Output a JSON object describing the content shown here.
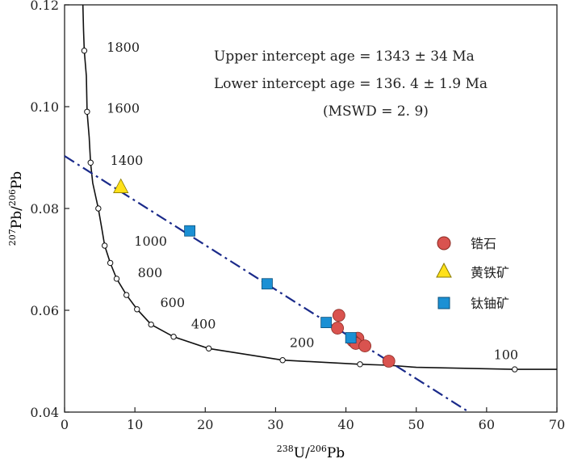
{
  "chart_data": {
    "type": "scatter",
    "xlabel": {
      "sup1": "238",
      "t1": "U/",
      "sup2": "206",
      "t2": "Pb"
    },
    "ylabel": {
      "sup1": "207",
      "t1": "Pb",
      "sep": "/",
      "sup2": "206",
      "t2": "Pb"
    },
    "xlim": [
      0,
      70
    ],
    "ylim": [
      0.04,
      0.12
    ],
    "xticks": [
      0,
      10,
      20,
      30,
      40,
      50,
      60,
      70
    ],
    "yticks": [
      0.04,
      0.06,
      0.08,
      0.1,
      0.12
    ],
    "ytick_labels": [
      "0.04",
      "0.06",
      "0.08",
      "0.10",
      "0.12"
    ],
    "annotations": {
      "upper": "Upper intercept  age = 1343 ± 34 Ma",
      "lower": "Lower intercept  age = 136. 4 ± 1.9 Ma",
      "mswd": "(MSWD = 2. 9)"
    },
    "concordia": {
      "points": [
        {
          "x": 2.6,
          "y": 0.12
        },
        {
          "x": 2.7,
          "y": 0.115
        },
        {
          "x": 2.8,
          "y": 0.111
        },
        {
          "x": 3.1,
          "y": 0.106
        },
        {
          "x": 3.2,
          "y": 0.099
        },
        {
          "x": 3.5,
          "y": 0.094
        },
        {
          "x": 3.7,
          "y": 0.089
        },
        {
          "x": 4.0,
          "y": 0.085
        },
        {
          "x": 4.8,
          "y": 0.08
        },
        {
          "x": 5.3,
          "y": 0.076
        },
        {
          "x": 5.7,
          "y": 0.0727
        },
        {
          "x": 6.5,
          "y": 0.0693
        },
        {
          "x": 7.4,
          "y": 0.0662
        },
        {
          "x": 8.8,
          "y": 0.063
        },
        {
          "x": 10.3,
          "y": 0.0602
        },
        {
          "x": 12.3,
          "y": 0.0572
        },
        {
          "x": 15.5,
          "y": 0.0548
        },
        {
          "x": 20.5,
          "y": 0.0525
        },
        {
          "x": 31.0,
          "y": 0.0502
        },
        {
          "x": 42.0,
          "y": 0.0494
        },
        {
          "x": 46.0,
          "y": 0.0492
        },
        {
          "x": 50.0,
          "y": 0.0488
        },
        {
          "x": 64.0,
          "y": 0.0484
        },
        {
          "x": 70.0,
          "y": 0.0484
        }
      ],
      "markers": [
        {
          "x": 2.8,
          "y": 0.111
        },
        {
          "x": 3.2,
          "y": 0.099
        },
        {
          "x": 3.7,
          "y": 0.089
        },
        {
          "x": 4.8,
          "y": 0.08
        },
        {
          "x": 5.7,
          "y": 0.0727
        },
        {
          "x": 6.5,
          "y": 0.0693
        },
        {
          "x": 7.4,
          "y": 0.0662
        },
        {
          "x": 8.8,
          "y": 0.063
        },
        {
          "x": 10.3,
          "y": 0.0602
        },
        {
          "x": 12.3,
          "y": 0.0572
        },
        {
          "x": 15.5,
          "y": 0.0548
        },
        {
          "x": 20.5,
          "y": 0.0525
        },
        {
          "x": 31.0,
          "y": 0.0502
        },
        {
          "x": 42.0,
          "y": 0.0494
        },
        {
          "x": 64.0,
          "y": 0.0484
        }
      ],
      "age_labels": [
        {
          "text": "1800",
          "x": 6.0,
          "y": 0.1108
        },
        {
          "text": "1600",
          "x": 6.0,
          "y": 0.0988
        },
        {
          "text": "1400",
          "x": 6.5,
          "y": 0.0886
        },
        {
          "text": "1000",
          "x": 9.9,
          "y": 0.0727
        },
        {
          "text": "800",
          "x": 10.4,
          "y": 0.0665
        },
        {
          "text": "600",
          "x": 13.6,
          "y": 0.0606
        },
        {
          "text": "400",
          "x": 18.0,
          "y": 0.0564
        },
        {
          "text": "200",
          "x": 32.0,
          "y": 0.0528
        },
        {
          "text": "100",
          "x": 61.0,
          "y": 0.0504
        }
      ]
    },
    "discordia": {
      "x1": 0,
      "y1": 0.0903,
      "x2": 57.5,
      "y2": 0.04,
      "color": "#1a2a8a"
    },
    "series": [
      {
        "name": "锆石",
        "marker": "circle",
        "color": "#d9534f",
        "stroke": "#8a2a22",
        "points": [
          {
            "x": 39.0,
            "y": 0.059
          },
          {
            "x": 38.8,
            "y": 0.0565
          },
          {
            "x": 41.7,
            "y": 0.0545
          },
          {
            "x": 41.0,
            "y": 0.054
          },
          {
            "x": 41.4,
            "y": 0.0535
          },
          {
            "x": 42.7,
            "y": 0.053
          },
          {
            "x": 46.1,
            "y": 0.05
          }
        ]
      },
      {
        "name": "黄铁矿",
        "marker": "triangle",
        "color": "#ffe11a",
        "stroke": "#8a7a00",
        "points": [
          {
            "x": 8.0,
            "y": 0.0842
          }
        ]
      },
      {
        "name": "钛铀矿",
        "marker": "square",
        "color": "#1b90d4",
        "stroke": "#0b4f7a",
        "points": [
          {
            "x": 17.8,
            "y": 0.0756
          },
          {
            "x": 28.8,
            "y": 0.0652
          },
          {
            "x": 37.2,
            "y": 0.0576
          },
          {
            "x": 40.7,
            "y": 0.0546
          }
        ]
      }
    ]
  }
}
